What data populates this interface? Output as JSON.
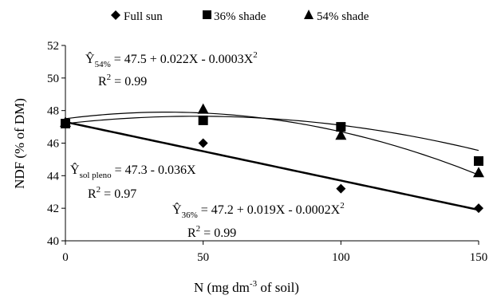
{
  "chart_data": {
    "type": "scatter",
    "xlabel": {
      "pre": "N (mg dm",
      "sup": "-3",
      "post": " of soil)"
    },
    "ylabel": "NDF (% of DM)",
    "xlim": [
      0,
      150
    ],
    "ylim": [
      40,
      52
    ],
    "x_ticks": [
      "0",
      "50",
      "100",
      "150"
    ],
    "y_ticks": [
      "40",
      "42",
      "44",
      "46",
      "48",
      "50",
      "52"
    ],
    "grid": false,
    "legend_position": "top-center",
    "series": [
      {
        "name": "Full sun",
        "marker": "diamond",
        "x": [
          0,
          50,
          100,
          150
        ],
        "y": [
          47.2,
          46.0,
          43.2,
          42.0
        ],
        "fit": {
          "a": 47.3,
          "b": -0.036,
          "c": 0
        }
      },
      {
        "name": "36% shade",
        "marker": "square",
        "x": [
          0,
          50,
          100,
          150
        ],
        "y": [
          47.2,
          47.4,
          47.0,
          44.9
        ],
        "fit": {
          "a": 47.2,
          "b": 0.019,
          "c": -0.0002
        }
      },
      {
        "name": "54% shade",
        "marker": "triangle",
        "x": [
          0,
          50,
          100,
          150
        ],
        "y": [
          47.3,
          48.1,
          46.5,
          44.2
        ],
        "fit": {
          "a": 47.5,
          "b": 0.022,
          "c": -0.0003
        }
      }
    ],
    "equations": [
      {
        "sub": "54%",
        "rhs": "= 47.5 + 0.022X - 0.0003X",
        "sup": "2",
        "r2_label": "R",
        "r2_sup": "2",
        "r2_value": " = 0.99"
      },
      {
        "sub": "sol pleno",
        "rhs": "= 47.3 - 0.036X",
        "sup": "",
        "r2_label": "R",
        "r2_sup": "2",
        "r2_value": " = 0.97"
      },
      {
        "sub": "36%",
        "rhs": "= 47.2 + 0.019X - 0.0002X",
        "sup": "2",
        "r2_label": "R",
        "r2_sup": "2",
        "r2_value": " = 0.99"
      }
    ],
    "equation_symbol": "Ŷ"
  }
}
